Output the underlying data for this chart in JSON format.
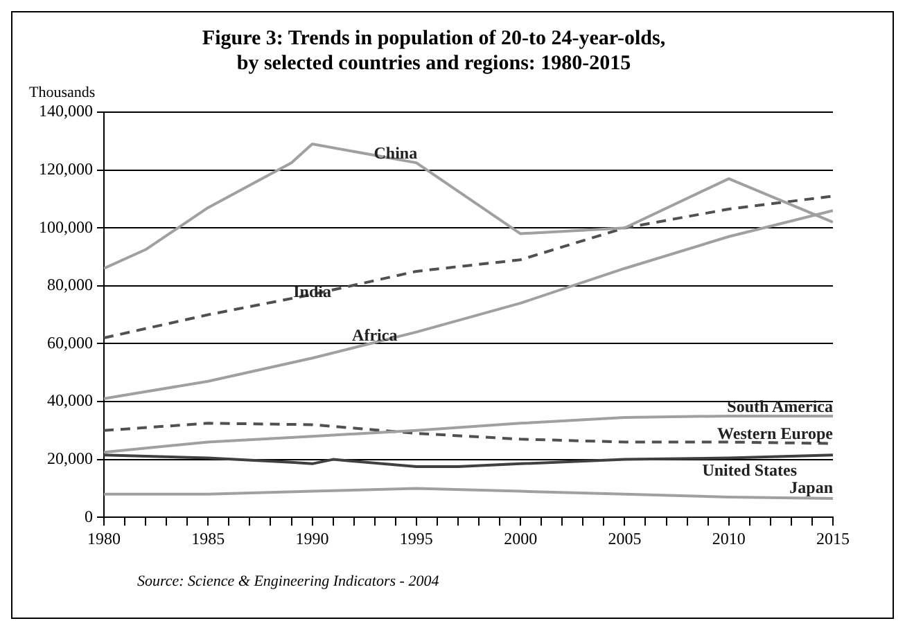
{
  "chart_data": {
    "type": "line",
    "title": "Figure 3: Trends in population of 20-to 24-year-olds,\nby selected countries and regions: 1980-2015",
    "ylabel": "Thousands",
    "annotations": [
      "Source: Science & Engineering Indicators - 2004"
    ],
    "xlim": [
      1980,
      2015
    ],
    "xticks": [
      1980,
      1985,
      1990,
      1995,
      2000,
      2005,
      2010,
      2015
    ],
    "ylim": [
      0,
      140000
    ],
    "yticks": [
      {
        "value": 0,
        "label": "0"
      },
      {
        "value": 20000,
        "label": "20,000"
      },
      {
        "value": 40000,
        "label": "40,000"
      },
      {
        "value": 60000,
        "label": "60,000"
      },
      {
        "value": 80000,
        "label": "80,000"
      },
      {
        "value": 100000,
        "label": "100,000"
      },
      {
        "value": 120000,
        "label": "120,000"
      },
      {
        "value": 140000,
        "label": "140,000"
      }
    ],
    "grid": "y",
    "legend": false,
    "marker": "none",
    "series": [
      {
        "name": "China",
        "color": "#a0a0a0",
        "line_style": "solid",
        "x": [
          1980,
          1982,
          1985,
          1989,
          1990,
          1995,
          2000,
          2005,
          2010,
          2015
        ],
        "values": [
          86000,
          92500,
          107000,
          122500,
          129000,
          122500,
          98000,
          100000,
          117000,
          102000
        ]
      },
      {
        "name": "India",
        "color": "#505050",
        "line_style": "dashed",
        "x": [
          1980,
          1985,
          1990,
          1995,
          2000,
          2005,
          2010,
          2015
        ],
        "values": [
          62000,
          70000,
          77000,
          85000,
          89000,
          100000,
          106500,
          111000
        ]
      },
      {
        "name": "Africa",
        "color": "#a0a0a0",
        "line_style": "solid",
        "x": [
          1980,
          1985,
          1990,
          1995,
          2000,
          2005,
          2010,
          2015
        ],
        "values": [
          41000,
          47000,
          55000,
          64000,
          74000,
          86000,
          97000,
          106000
        ]
      },
      {
        "name": "South America",
        "color": "#a0a0a0",
        "line_style": "solid",
        "x": [
          1980,
          1985,
          1990,
          1995,
          2000,
          2005,
          2010,
          2015
        ],
        "values": [
          22500,
          26000,
          28000,
          30000,
          32500,
          34500,
          35000,
          35000
        ]
      },
      {
        "name": "Western Europe",
        "color": "#505050",
        "line_style": "dashed",
        "x": [
          1980,
          1985,
          1990,
          1995,
          2000,
          2005,
          2010,
          2015
        ],
        "values": [
          30000,
          32500,
          32000,
          29000,
          27000,
          26000,
          26000,
          25500
        ]
      },
      {
        "name": "United States",
        "color": "#404040",
        "line_style": "solid",
        "x": [
          1980,
          1985,
          1989,
          1990,
          1991,
          1995,
          1997,
          2000,
          2005,
          2010,
          2015
        ],
        "values": [
          21500,
          20500,
          19000,
          18500,
          20000,
          17500,
          17500,
          18500,
          20000,
          20500,
          21500
        ]
      },
      {
        "name": "Japan",
        "color": "#a0a0a0",
        "line_style": "solid",
        "x": [
          1980,
          1985,
          1990,
          1995,
          2000,
          2005,
          2010,
          2015
        ],
        "values": [
          8000,
          8000,
          9000,
          10000,
          9000,
          8000,
          7000,
          6500
        ]
      }
    ]
  }
}
